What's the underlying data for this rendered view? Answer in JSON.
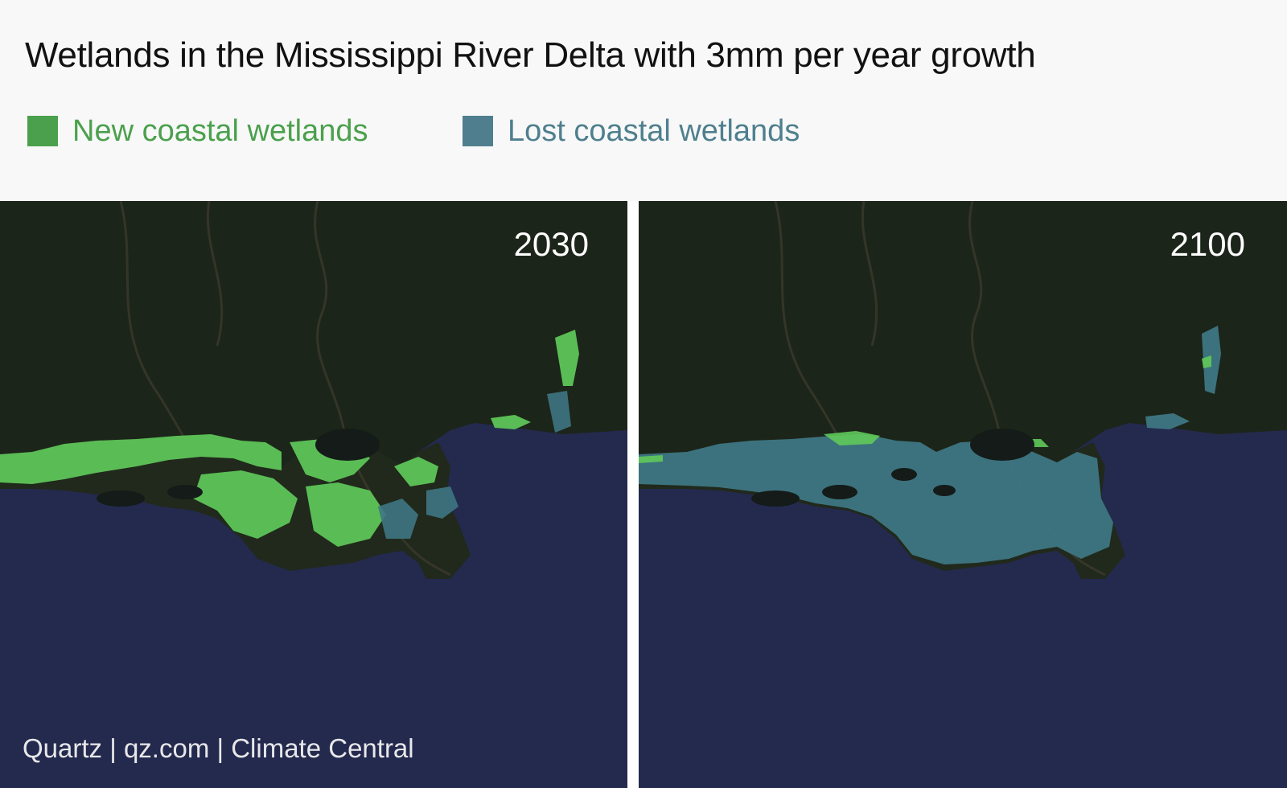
{
  "title": "Wetlands in the Mississippi River Delta with 3mm per year growth",
  "legend": {
    "items": [
      {
        "label": "New coastal wetlands",
        "color": "#4ba04d",
        "text_color": "#4ba04d"
      },
      {
        "label": "Lost coastal wetlands",
        "color": "#4f7f8e",
        "text_color": "#4f7f8e"
      }
    ]
  },
  "panels": [
    {
      "year": "2030",
      "dominant": "new"
    },
    {
      "year": "2100",
      "dominant": "lost"
    }
  ],
  "credit": "Quartz | qz.com | Climate Central",
  "colors": {
    "land": "#1c2519",
    "sea": "#242a4e",
    "lake": "#141b18",
    "river": "#3b3a2c",
    "new_wetland": "#5fc95a",
    "lost_wetland": "#3e7683"
  }
}
